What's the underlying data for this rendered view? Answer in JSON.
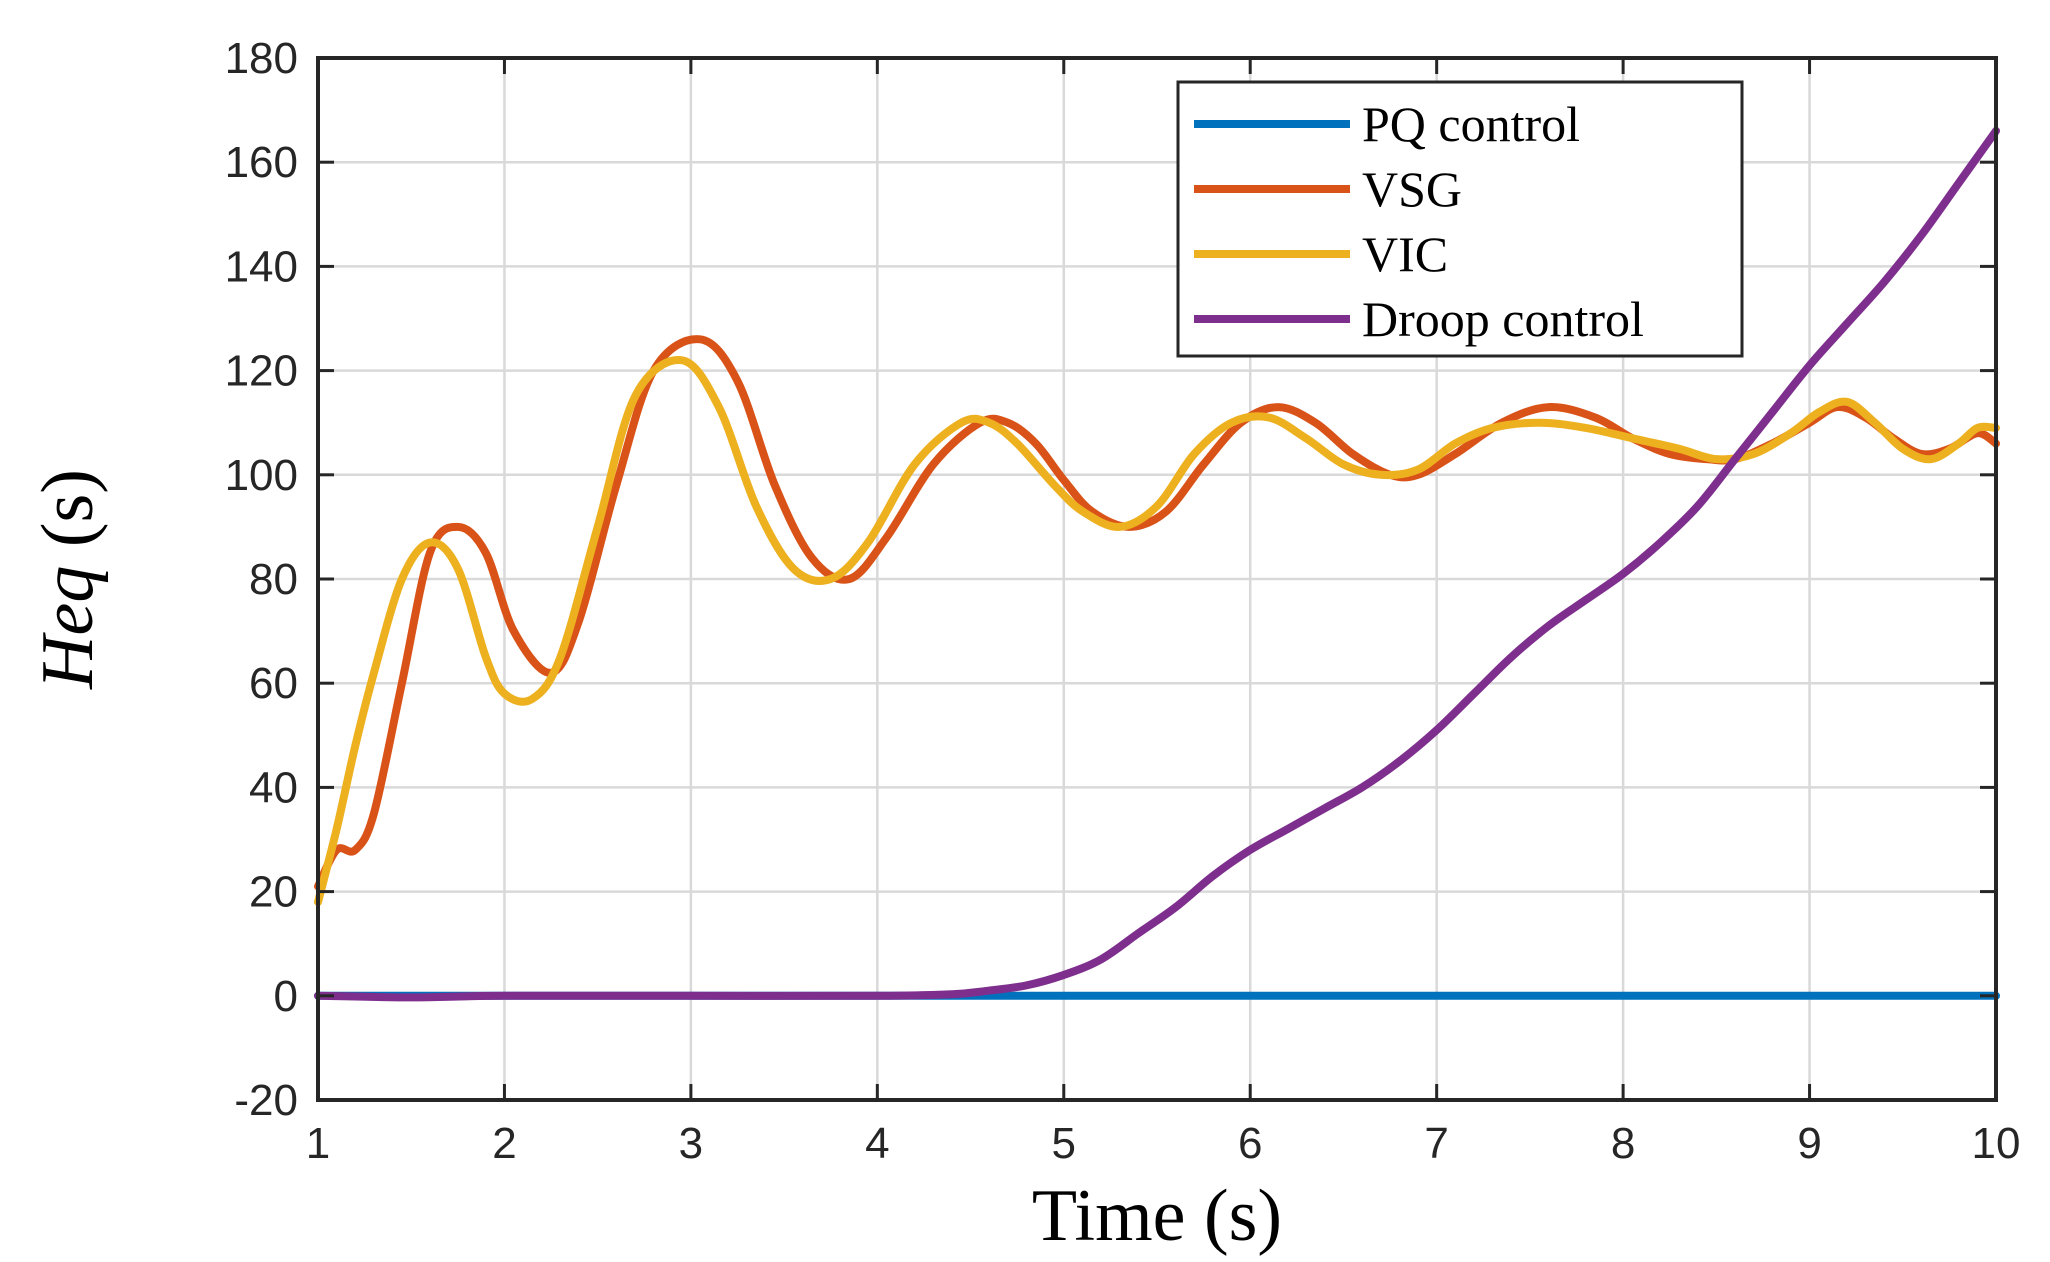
{
  "chart_data": {
    "type": "line",
    "xlabel": "Time (s)",
    "ylabel_main": "Heq",
    "ylabel_unit": " (s)",
    "xlim": [
      1,
      10
    ],
    "ylim": [
      -20,
      180
    ],
    "xticks": [
      1,
      2,
      3,
      4,
      5,
      6,
      7,
      8,
      9,
      10
    ],
    "yticks": [
      -20,
      0,
      20,
      40,
      60,
      80,
      100,
      120,
      140,
      160,
      180
    ],
    "grid": true,
    "legend_position": "top-right",
    "series": [
      {
        "name": "PQ control",
        "color": "#0072BD",
        "x": [
          1,
          2,
          3,
          4,
          5,
          6,
          7,
          8,
          9,
          10
        ],
        "y": [
          0,
          0,
          0,
          0,
          0,
          0,
          0,
          0,
          0,
          0
        ]
      },
      {
        "name": "VSG",
        "color": "#D95319",
        "x": [
          1.0,
          1.1,
          1.2,
          1.3,
          1.45,
          1.6,
          1.75,
          1.9,
          2.05,
          2.25,
          2.4,
          2.6,
          2.8,
          3.05,
          3.25,
          3.45,
          3.65,
          3.85,
          4.05,
          4.3,
          4.55,
          4.7,
          4.85,
          5.0,
          5.15,
          5.35,
          5.55,
          5.75,
          5.95,
          6.15,
          6.35,
          6.55,
          6.75,
          6.9,
          7.1,
          7.35,
          7.6,
          7.85,
          8.05,
          8.25,
          8.45,
          8.6,
          8.8,
          9.0,
          9.15,
          9.3,
          9.45,
          9.6,
          9.75,
          9.9,
          10.0
        ],
        "y": [
          21,
          28,
          28,
          35,
          60,
          85,
          90,
          85,
          70,
          62,
          72,
          98,
          120,
          126,
          118,
          98,
          84,
          80,
          88,
          102,
          110,
          110,
          106,
          99,
          93,
          90,
          93,
          102,
          110,
          113,
          110,
          104,
          100,
          100,
          104,
          110,
          113,
          111,
          107,
          104,
          103,
          103,
          106,
          110,
          113,
          111,
          107,
          104,
          105,
          108,
          106
        ]
      },
      {
        "name": "VIC",
        "color": "#EDB120",
        "x": [
          1.0,
          1.1,
          1.2,
          1.3,
          1.45,
          1.6,
          1.75,
          1.9,
          2.0,
          2.15,
          2.3,
          2.5,
          2.7,
          2.95,
          3.15,
          3.35,
          3.55,
          3.75,
          3.95,
          4.2,
          4.45,
          4.6,
          4.75,
          4.95,
          5.1,
          5.3,
          5.5,
          5.7,
          5.9,
          6.1,
          6.3,
          6.5,
          6.7,
          6.9,
          7.1,
          7.3,
          7.55,
          7.8,
          8.05,
          8.3,
          8.5,
          8.7,
          8.9,
          9.05,
          9.2,
          9.35,
          9.5,
          9.65,
          9.8,
          9.9,
          10.0
        ],
        "y": [
          18,
          32,
          48,
          62,
          80,
          87,
          82,
          65,
          58,
          57,
          65,
          90,
          115,
          122,
          113,
          94,
          82,
          80,
          87,
          102,
          110,
          110,
          106,
          98,
          93,
          90,
          94,
          104,
          110,
          111,
          107,
          102,
          100,
          101,
          106,
          109,
          110,
          109,
          107,
          105,
          103,
          104,
          108,
          112,
          114,
          110,
          105,
          103,
          106,
          109,
          109
        ]
      },
      {
        "name": "Droop control",
        "color": "#7E2F8E",
        "x": [
          1.0,
          1.5,
          2.0,
          3.0,
          4.0,
          4.4,
          4.6,
          4.8,
          5.0,
          5.2,
          5.4,
          5.6,
          5.8,
          6.0,
          6.2,
          6.4,
          6.6,
          6.8,
          7.0,
          7.2,
          7.4,
          7.6,
          7.8,
          8.0,
          8.2,
          8.4,
          8.6,
          8.8,
          9.0,
          9.2,
          9.4,
          9.6,
          9.8,
          10.0
        ],
        "y": [
          0,
          -0.3,
          0,
          0,
          0,
          0.3,
          1,
          2,
          4,
          7,
          12,
          17,
          23,
          28,
          32,
          36,
          40,
          45,
          51,
          58,
          65,
          71,
          76,
          81,
          87,
          94,
          103,
          112,
          121,
          129,
          137,
          146,
          156,
          166
        ]
      }
    ]
  }
}
